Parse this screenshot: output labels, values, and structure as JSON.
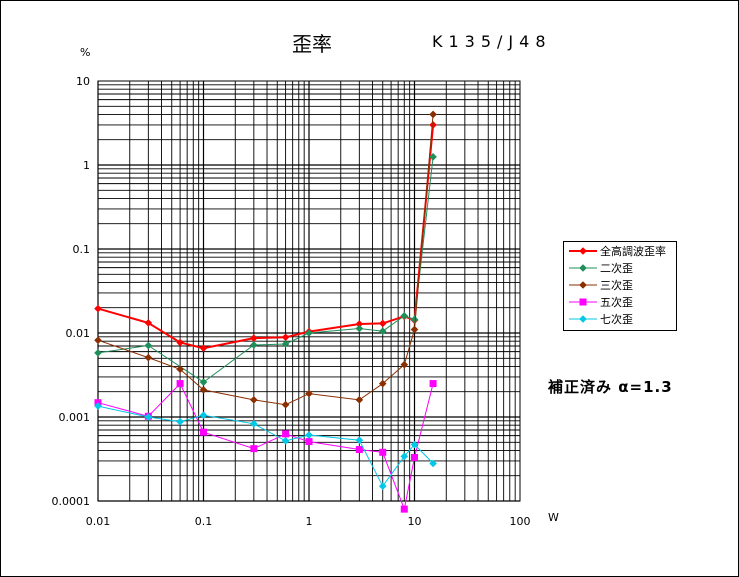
{
  "chart_data": {
    "type": "line",
    "title": "歪率",
    "subtitle": "K135/J48",
    "xlabel": "W",
    "ylabel": "%",
    "x_scale": "log",
    "y_scale": "log",
    "xlim": [
      0.01,
      100
    ],
    "ylim": [
      0.0001,
      10
    ],
    "x_ticks": [
      "0.01",
      "0.1",
      "1",
      "10",
      "100"
    ],
    "y_ticks": [
      "0.0001",
      "0.001",
      "0.01",
      "0.1",
      "1",
      "10"
    ],
    "grid": true,
    "legend_position": "right",
    "annotation": "補正済み α=1.3",
    "series": [
      {
        "name": "全高調波歪率",
        "color": "#ff0000",
        "marker": "diamond",
        "x": [
          0.01,
          0.03,
          0.06,
          0.1,
          0.3,
          0.6,
          1,
          3,
          5,
          8,
          10,
          15
        ],
        "y": [
          0.0195,
          0.0132,
          0.0077,
          0.0066,
          0.0087,
          0.0089,
          0.0104,
          0.0128,
          0.013,
          0.0158,
          0.0142,
          3.0
        ]
      },
      {
        "name": "二次歪",
        "color": "#1f8f5a",
        "marker": "diamond",
        "x": [
          0.01,
          0.03,
          0.1,
          0.3,
          0.6,
          1,
          3,
          5,
          8,
          10,
          15
        ],
        "y": [
          0.0058,
          0.0071,
          0.0026,
          0.0072,
          0.0074,
          0.01,
          0.0113,
          0.0105,
          0.016,
          0.0145,
          1.25
        ]
      },
      {
        "name": "三次歪",
        "color": "#8b2e00",
        "marker": "diamond",
        "x": [
          0.01,
          0.03,
          0.06,
          0.1,
          0.3,
          0.6,
          1,
          3,
          5,
          8,
          10,
          15
        ],
        "y": [
          0.0082,
          0.0051,
          0.0037,
          0.0021,
          0.0016,
          0.0014,
          0.0019,
          0.0016,
          0.0025,
          0.0042,
          0.011,
          4.0
        ]
      },
      {
        "name": "五次歪",
        "color": "#ff00ff",
        "marker": "square",
        "x": [
          0.01,
          0.03,
          0.06,
          0.1,
          0.3,
          0.6,
          1,
          3,
          5,
          8,
          10,
          15
        ],
        "y": [
          0.00148,
          0.00102,
          0.0025,
          0.00066,
          0.00042,
          0.00063,
          0.00051,
          0.00041,
          0.00038,
          8e-05,
          0.00033,
          0.0025
        ]
      },
      {
        "name": "七次歪",
        "color": "#00c8e6",
        "marker": "diamond",
        "x": [
          0.01,
          0.03,
          0.06,
          0.1,
          0.3,
          0.6,
          1,
          3,
          5,
          8,
          10,
          15
        ],
        "y": [
          0.00135,
          0.001,
          0.00088,
          0.00105,
          0.00083,
          0.00052,
          0.00061,
          0.00053,
          0.00015,
          0.00034,
          0.00047,
          0.00028
        ]
      }
    ]
  }
}
